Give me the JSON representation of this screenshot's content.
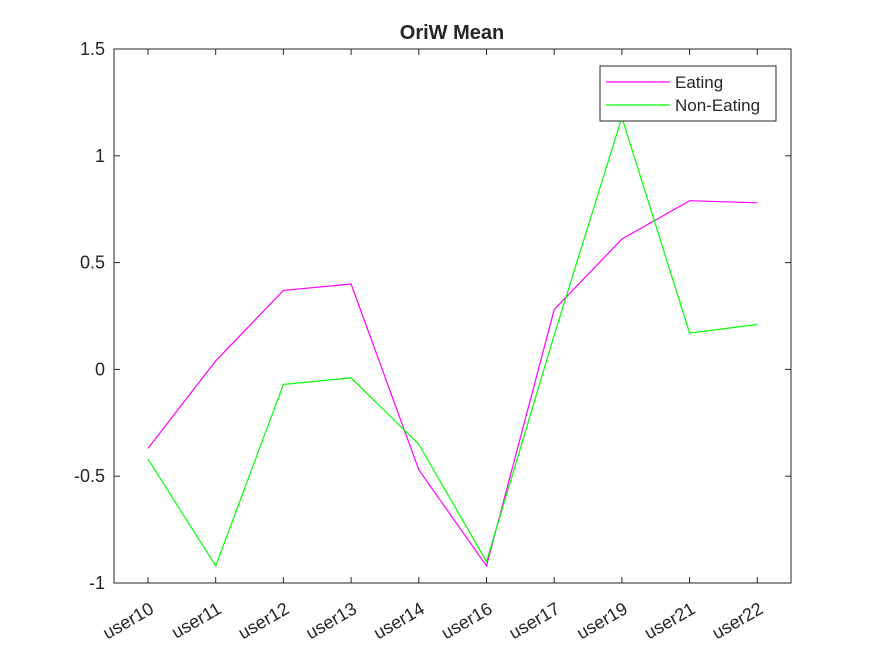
{
  "chart_data": {
    "type": "line",
    "title": "OriW Mean",
    "xlabel": "",
    "ylabel": "",
    "categories": [
      "user10",
      "user11",
      "user12",
      "user13",
      "user14",
      "user16",
      "user17",
      "user19",
      "user21",
      "user22"
    ],
    "ylim": [
      -1,
      1.5
    ],
    "yticks": [
      -1,
      -0.5,
      0,
      0.5,
      1,
      1.5
    ],
    "ytick_labels": [
      "-1",
      "-0.5",
      "0",
      "0.5",
      "1",
      "1.5"
    ],
    "grid": false,
    "legend_position": "top-right",
    "series": [
      {
        "name": "Eating",
        "color": "#ff00ff",
        "values": [
          -0.37,
          0.04,
          0.37,
          0.4,
          -0.47,
          -0.92,
          0.28,
          0.61,
          0.79,
          0.78
        ]
      },
      {
        "name": "Non-Eating",
        "color": "#00ff00",
        "values": [
          -0.42,
          -0.92,
          -0.07,
          -0.04,
          -0.35,
          -0.9,
          0.16,
          1.18,
          0.17,
          0.21
        ]
      }
    ]
  }
}
